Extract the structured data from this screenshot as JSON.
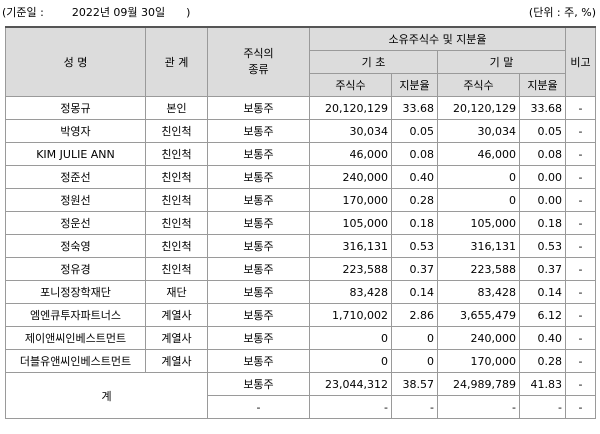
{
  "header": {
    "base_date": "(기준일 :        2022년 09월 30일      )",
    "unit": "(단위 : 주, %)"
  },
  "table": {
    "col_name": "성 명",
    "col_relation": "관 계",
    "col_stock_type": "주식의\n종류",
    "col_holdings": "소유주식수 및 지분율",
    "col_begin": "기 초",
    "col_end": "기 말",
    "col_shares": "주식수",
    "col_ratio": "지분율",
    "col_note": "비고",
    "rows": [
      {
        "name": "정몽규",
        "relation": "본인",
        "type": "보통주",
        "begin_shares": "20,120,129",
        "begin_ratio": "33.68",
        "end_shares": "20,120,129",
        "end_ratio": "33.68",
        "note": "-"
      },
      {
        "name": "박영자",
        "relation": "친인척",
        "type": "보통주",
        "begin_shares": "30,034",
        "begin_ratio": "0.05",
        "end_shares": "30,034",
        "end_ratio": "0.05",
        "note": "-"
      },
      {
        "name": "KIM JULIE ANN",
        "relation": "친인척",
        "type": "보통주",
        "begin_shares": "46,000",
        "begin_ratio": "0.08",
        "end_shares": "46,000",
        "end_ratio": "0.08",
        "note": "-"
      },
      {
        "name": "정준선",
        "relation": "친인척",
        "type": "보통주",
        "begin_shares": "240,000",
        "begin_ratio": "0.40",
        "end_shares": "0",
        "end_ratio": "0.00",
        "note": "-"
      },
      {
        "name": "정원선",
        "relation": "친인척",
        "type": "보통주",
        "begin_shares": "170,000",
        "begin_ratio": "0.28",
        "end_shares": "0",
        "end_ratio": "0.00",
        "note": "-"
      },
      {
        "name": "정운선",
        "relation": "친인척",
        "type": "보통주",
        "begin_shares": "105,000",
        "begin_ratio": "0.18",
        "end_shares": "105,000",
        "end_ratio": "0.18",
        "note": "-"
      },
      {
        "name": "정숙영",
        "relation": "친인척",
        "type": "보통주",
        "begin_shares": "316,131",
        "begin_ratio": "0.53",
        "end_shares": "316,131",
        "end_ratio": "0.53",
        "note": "-"
      },
      {
        "name": "정유경",
        "relation": "친인척",
        "type": "보통주",
        "begin_shares": "223,588",
        "begin_ratio": "0.37",
        "end_shares": "223,588",
        "end_ratio": "0.37",
        "note": "-"
      },
      {
        "name": "포니정장학재단",
        "relation": "재단",
        "type": "보통주",
        "begin_shares": "83,428",
        "begin_ratio": "0.14",
        "end_shares": "83,428",
        "end_ratio": "0.14",
        "note": "-"
      },
      {
        "name": "엠엔큐투자파트너스",
        "relation": "계열사",
        "type": "보통주",
        "begin_shares": "1,710,002",
        "begin_ratio": "2.86",
        "end_shares": "3,655,479",
        "end_ratio": "6.12",
        "note": "-"
      },
      {
        "name": "제이앤씨인베스트먼트",
        "relation": "계열사",
        "type": "보통주",
        "begin_shares": "0",
        "begin_ratio": "0",
        "end_shares": "240,000",
        "end_ratio": "0.40",
        "note": "-"
      },
      {
        "name": "더블유앤씨인베스트먼트",
        "relation": "계열사",
        "type": "보통주",
        "begin_shares": "0",
        "begin_ratio": "0",
        "end_shares": "170,000",
        "end_ratio": "0.28",
        "note": "-"
      }
    ],
    "total": {
      "label": "계",
      "row1": {
        "type": "보통주",
        "begin_shares": "23,044,312",
        "begin_ratio": "38.57",
        "end_shares": "24,989,789",
        "end_ratio": "41.83",
        "note": "-"
      },
      "row2": {
        "type": "-",
        "begin_shares": "-",
        "begin_ratio": "-",
        "end_shares": "-",
        "end_ratio": "-",
        "note": "-"
      }
    }
  }
}
